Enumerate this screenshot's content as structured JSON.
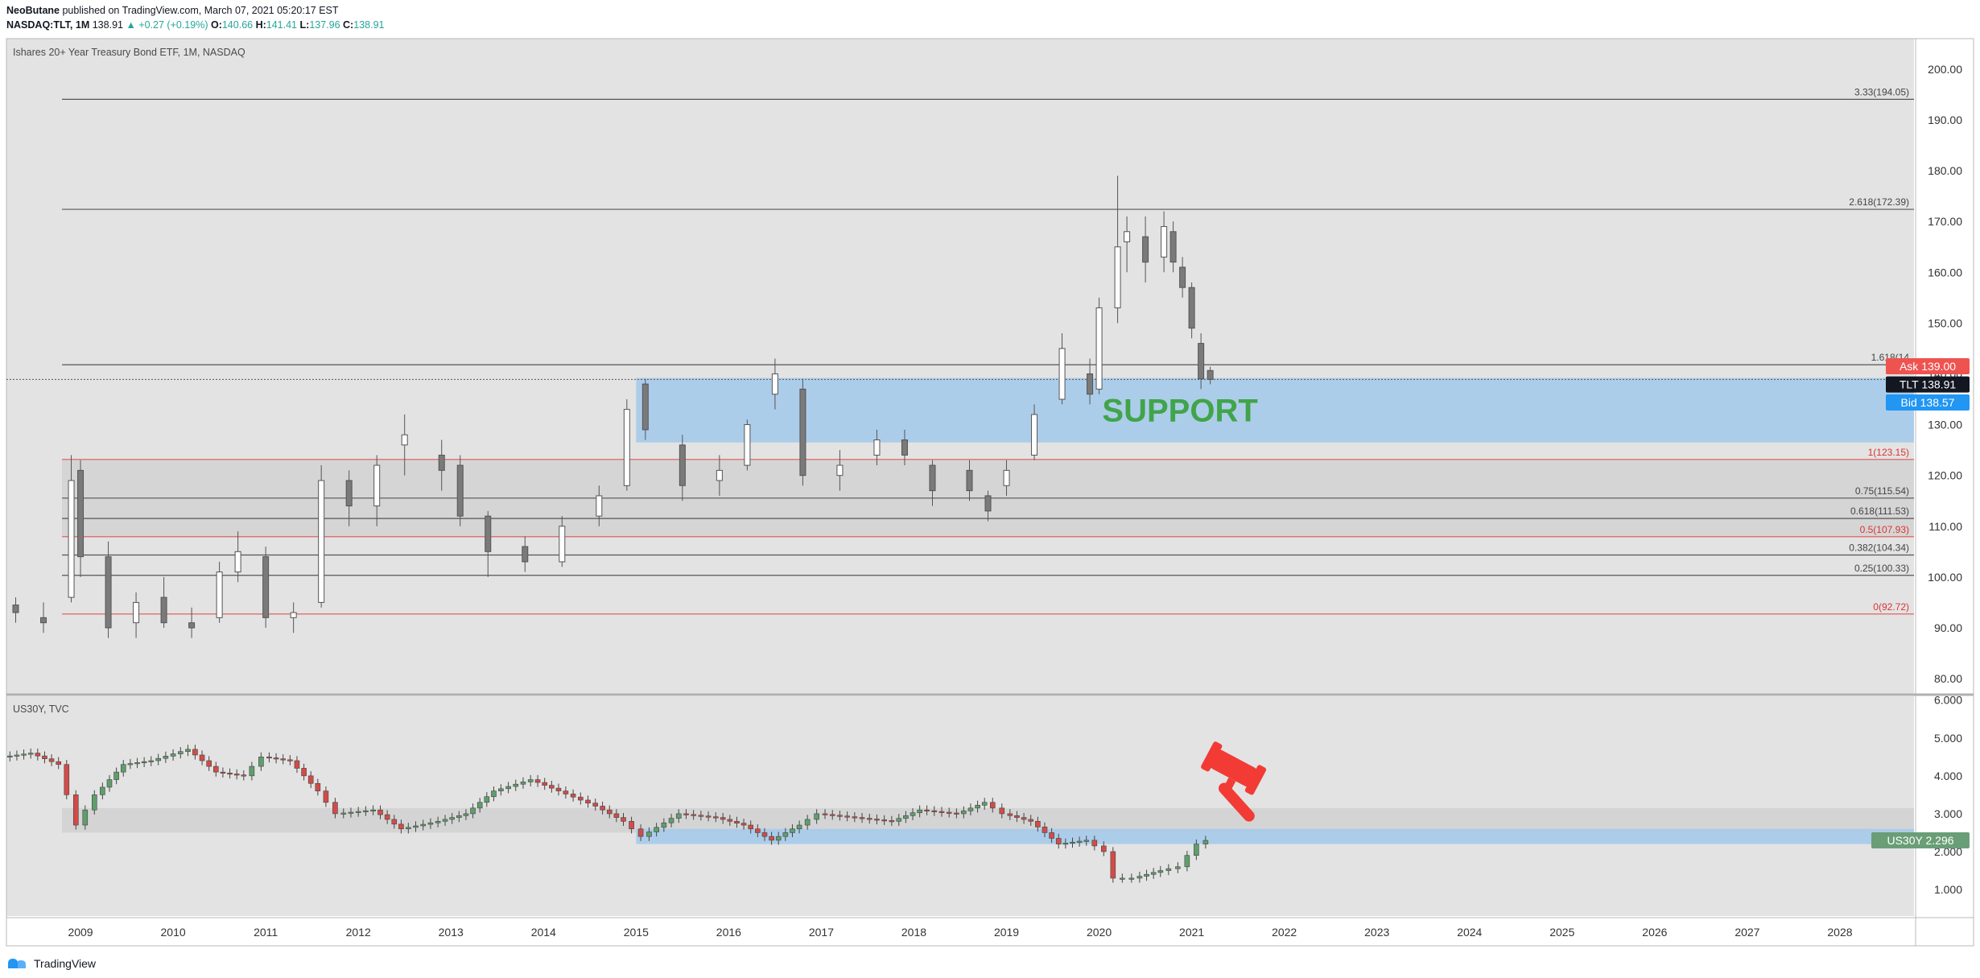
{
  "header": {
    "author": "NeoButane",
    "published": "published on TradingView.com, March 07, 2021 05:20:17 EST",
    "symbol": "NASDAQ:TLT, 1M",
    "last": "138.91",
    "change": "+0.27 (+0.19%)",
    "o_label": "O:",
    "o_value": "140.66",
    "h_label": "H:",
    "h_value": "141.41",
    "l_label": "L:",
    "l_value": "137.96",
    "c_label": "C:",
    "c_value": "138.91"
  },
  "main_pane": {
    "title": "Ishares 20+ Year Treasury Bond ETF, 1M, NASDAQ"
  },
  "lower_pane": {
    "title": "US30Y, TVC"
  },
  "footer": {
    "brand": "TradingView"
  },
  "colors": {
    "background": "#e3e3e3",
    "support_zone": "#a9cbe9",
    "fib_zone": "#d3d3d3",
    "red_line": "#e05555",
    "bull_candle": "#ffffff",
    "bear_candle": "#7a7a7a",
    "us30y_up": "#5f9e6c",
    "us30y_down": "#d24b48",
    "ask": "#ef5350",
    "bid": "#2196f3",
    "last": "#131722",
    "annotation_green": "#41a44a",
    "gavel": "#f23b35"
  },
  "chart_data": [
    {
      "type": "candlestick",
      "series_name": "TLT",
      "timeframe": "1M",
      "ylim": [
        77,
        206
      ],
      "y_ticks": [
        "80.00",
        "90.00",
        "100.00",
        "110.00",
        "120.00",
        "130.00",
        "140.00",
        "150.00",
        "160.00",
        "170.00",
        "180.00",
        "190.00",
        "200.00"
      ],
      "x_ticks": [
        "2009",
        "2010",
        "2011",
        "2012",
        "2013",
        "2014",
        "2015",
        "2016",
        "2017",
        "2018",
        "2019",
        "2020",
        "2021",
        "2022",
        "2023",
        "2024",
        "2025",
        "2026",
        "2027",
        "2028"
      ],
      "x_range": [
        2008.2,
        2028.8
      ],
      "ohlc_approx": [
        {
          "t": 2008.3,
          "o": 94.5,
          "h": 96,
          "l": 91,
          "c": 93
        },
        {
          "t": 2008.6,
          "o": 92,
          "h": 95,
          "l": 89,
          "c": 91
        },
        {
          "t": 2008.9,
          "o": 96,
          "h": 124,
          "l": 95,
          "c": 119
        },
        {
          "t": 2009.0,
          "o": 121,
          "h": 123,
          "l": 100,
          "c": 104
        },
        {
          "t": 2009.3,
          "o": 104,
          "h": 107,
          "l": 88,
          "c": 90
        },
        {
          "t": 2009.6,
          "o": 91,
          "h": 97,
          "l": 88,
          "c": 95
        },
        {
          "t": 2009.9,
          "o": 96,
          "h": 100,
          "l": 90,
          "c": 91
        },
        {
          "t": 2010.2,
          "o": 91,
          "h": 94,
          "l": 88,
          "c": 90
        },
        {
          "t": 2010.5,
          "o": 92,
          "h": 103,
          "l": 91,
          "c": 101
        },
        {
          "t": 2010.7,
          "o": 101,
          "h": 109,
          "l": 99,
          "c": 105
        },
        {
          "t": 2011.0,
          "o": 104,
          "h": 106,
          "l": 90,
          "c": 92
        },
        {
          "t": 2011.3,
          "o": 92,
          "h": 95,
          "l": 89,
          "c": 93
        },
        {
          "t": 2011.6,
          "o": 95,
          "h": 122,
          "l": 94,
          "c": 119
        },
        {
          "t": 2011.9,
          "o": 119,
          "h": 121,
          "l": 110,
          "c": 114
        },
        {
          "t": 2012.2,
          "o": 114,
          "h": 124,
          "l": 110,
          "c": 122
        },
        {
          "t": 2012.5,
          "o": 126,
          "h": 132,
          "l": 120,
          "c": 128
        },
        {
          "t": 2012.9,
          "o": 124,
          "h": 127,
          "l": 117,
          "c": 121
        },
        {
          "t": 2013.1,
          "o": 122,
          "h": 124,
          "l": 110,
          "c": 112
        },
        {
          "t": 2013.4,
          "o": 112,
          "h": 113,
          "l": 100,
          "c": 105
        },
        {
          "t": 2013.8,
          "o": 106,
          "h": 108,
          "l": 101,
          "c": 103
        },
        {
          "t": 2014.2,
          "o": 103,
          "h": 112,
          "l": 102,
          "c": 110
        },
        {
          "t": 2014.6,
          "o": 112,
          "h": 118,
          "l": 110,
          "c": 116
        },
        {
          "t": 2014.9,
          "o": 118,
          "h": 135,
          "l": 117,
          "c": 133
        },
        {
          "t": 2015.1,
          "o": 138,
          "h": 139,
          "l": 127,
          "c": 129
        },
        {
          "t": 2015.5,
          "o": 126,
          "h": 128,
          "l": 115,
          "c": 118
        },
        {
          "t": 2015.9,
          "o": 119,
          "h": 124,
          "l": 116,
          "c": 121
        },
        {
          "t": 2016.2,
          "o": 122,
          "h": 131,
          "l": 121,
          "c": 130
        },
        {
          "t": 2016.5,
          "o": 136,
          "h": 143,
          "l": 133,
          "c": 140
        },
        {
          "t": 2016.8,
          "o": 137,
          "h": 139,
          "l": 118,
          "c": 120
        },
        {
          "t": 2017.2,
          "o": 120,
          "h": 125,
          "l": 117,
          "c": 122
        },
        {
          "t": 2017.6,
          "o": 124,
          "h": 129,
          "l": 122,
          "c": 127
        },
        {
          "t": 2017.9,
          "o": 127,
          "h": 129,
          "l": 122,
          "c": 124
        },
        {
          "t": 2018.2,
          "o": 122,
          "h": 123,
          "l": 114,
          "c": 117
        },
        {
          "t": 2018.6,
          "o": 121,
          "h": 123,
          "l": 115,
          "c": 117
        },
        {
          "t": 2018.8,
          "o": 116,
          "h": 117,
          "l": 111,
          "c": 113
        },
        {
          "t": 2019.0,
          "o": 118,
          "h": 123,
          "l": 116,
          "c": 121
        },
        {
          "t": 2019.3,
          "o": 124,
          "h": 134,
          "l": 123,
          "c": 132
        },
        {
          "t": 2019.6,
          "o": 135,
          "h": 148,
          "l": 134,
          "c": 145
        },
        {
          "t": 2019.9,
          "o": 140,
          "h": 143,
          "l": 134,
          "c": 136
        },
        {
          "t": 2020.0,
          "o": 137,
          "h": 155,
          "l": 136,
          "c": 153
        },
        {
          "t": 2020.2,
          "o": 153,
          "h": 179,
          "l": 150,
          "c": 165
        },
        {
          "t": 2020.3,
          "o": 166,
          "h": 171,
          "l": 160,
          "c": 168
        },
        {
          "t": 2020.5,
          "o": 167,
          "h": 171,
          "l": 158,
          "c": 162
        },
        {
          "t": 2020.7,
          "o": 163,
          "h": 172,
          "l": 160,
          "c": 169
        },
        {
          "t": 2020.8,
          "o": 168,
          "h": 170,
          "l": 160,
          "c": 162
        },
        {
          "t": 2020.9,
          "o": 161,
          "h": 163,
          "l": 155,
          "c": 157
        },
        {
          "t": 2021.0,
          "o": 157,
          "h": 158,
          "l": 147,
          "c": 149
        },
        {
          "t": 2021.1,
          "o": 146,
          "h": 148,
          "l": 137,
          "c": 139
        },
        {
          "t": 2021.2,
          "o": 140.66,
          "h": 141.41,
          "l": 137.96,
          "c": 138.91
        }
      ],
      "horizontal_levels": [
        {
          "label": "3.33(194.05)",
          "value": 194.05
        },
        {
          "label": "2.618(172.39)",
          "value": 172.39
        },
        {
          "label": "1.618(14",
          "value": 141.8
        },
        {
          "label": "1(123.15)",
          "value": 123.15,
          "color": "red"
        },
        {
          "label": "0.75(115.54)",
          "value": 115.54
        },
        {
          "label": "0.618(111.53)",
          "value": 111.53
        },
        {
          "label": "0.5(107.93)",
          "value": 107.93,
          "color": "red"
        },
        {
          "label": "0.382(104.34)",
          "value": 104.34
        },
        {
          "label": "0.25(100.33)",
          "value": 100.33
        },
        {
          "label": "0(92.72)",
          "value": 92.72,
          "color": "red"
        }
      ],
      "zones": [
        {
          "name": "fib-zone",
          "from": 107.93,
          "to": 123.15,
          "x_start": 2008.8,
          "color": "grey"
        },
        {
          "name": "support-zone",
          "from": 126.5,
          "to": 139.2,
          "x_start": 2015.0,
          "color": "blue",
          "label": "SUPPORT"
        }
      ],
      "price_labels": [
        {
          "name": "Ask",
          "value": "139.00"
        },
        {
          "name": "TLT",
          "value": "138.91"
        },
        {
          "name": "Bid",
          "value": "138.57"
        }
      ]
    },
    {
      "type": "candlestick",
      "series_name": "US30Y",
      "ylim": [
        0.3,
        6.1
      ],
      "y_ticks": [
        "1.000",
        "2.000",
        "3.000",
        "4.000",
        "5.000",
        "6.000"
      ],
      "x_range": [
        2008.2,
        2028.8
      ],
      "path_approx": [
        [
          2008.2,
          4.5
        ],
        [
          2008.5,
          4.6
        ],
        [
          2008.8,
          4.3
        ],
        [
          2009.0,
          2.7
        ],
        [
          2009.2,
          3.5
        ],
        [
          2009.5,
          4.3
        ],
        [
          2009.8,
          4.4
        ],
        [
          2010.2,
          4.7
        ],
        [
          2010.5,
          4.1
        ],
        [
          2010.8,
          4.0
        ],
        [
          2011.0,
          4.5
        ],
        [
          2011.3,
          4.4
        ],
        [
          2011.6,
          3.6
        ],
        [
          2011.8,
          3.0
        ],
        [
          2012.2,
          3.1
        ],
        [
          2012.5,
          2.6
        ],
        [
          2012.9,
          2.8
        ],
        [
          2013.2,
          3.0
        ],
        [
          2013.5,
          3.6
        ],
        [
          2013.9,
          3.9
        ],
        [
          2014.2,
          3.6
        ],
        [
          2014.6,
          3.2
        ],
        [
          2014.9,
          2.8
        ],
        [
          2015.1,
          2.4
        ],
        [
          2015.5,
          3.0
        ],
        [
          2015.9,
          2.9
        ],
        [
          2016.2,
          2.7
        ],
        [
          2016.5,
          2.3
        ],
        [
          2016.8,
          2.7
        ],
        [
          2017.0,
          3.0
        ],
        [
          2017.4,
          2.9
        ],
        [
          2017.8,
          2.8
        ],
        [
          2018.1,
          3.1
        ],
        [
          2018.5,
          3.0
        ],
        [
          2018.8,
          3.3
        ],
        [
          2019.0,
          3.0
        ],
        [
          2019.3,
          2.8
        ],
        [
          2019.6,
          2.2
        ],
        [
          2019.9,
          2.3
        ],
        [
          2020.1,
          2.0
        ],
        [
          2020.2,
          1.3
        ],
        [
          2020.4,
          1.3
        ],
        [
          2020.7,
          1.5
        ],
        [
          2020.9,
          1.6
        ],
        [
          2021.0,
          1.9
        ],
        [
          2021.1,
          2.2
        ],
        [
          2021.2,
          2.296
        ]
      ],
      "zones": [
        {
          "name": "grey-zone",
          "from": 2.5,
          "to": 3.15,
          "x_start": 2008.8
        },
        {
          "name": "blue-zone",
          "from": 2.2,
          "to": 2.6,
          "x_start": 2015.0
        }
      ],
      "price_labels": [
        {
          "name": "US30Y",
          "value": "2.296"
        }
      ]
    }
  ]
}
